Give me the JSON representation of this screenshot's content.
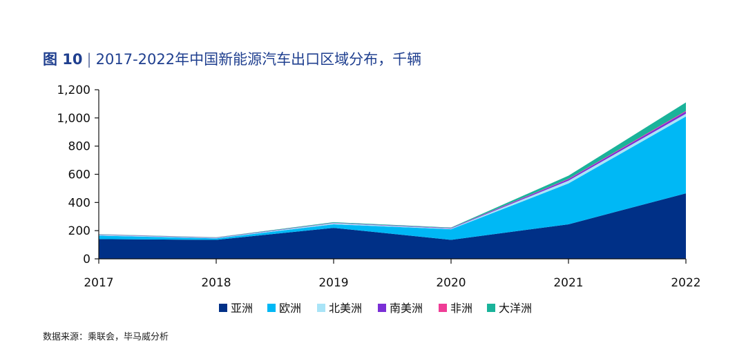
{
  "header": {
    "figure_label": "图 10",
    "separator": "|",
    "title": "2017-2022年中国新能源汽车出口区域分布，千辆"
  },
  "footer": {
    "source": "数据来源：乘联会，毕马威分析"
  },
  "chart_data": {
    "type": "area",
    "stacked": true,
    "categories": [
      "2017",
      "2018",
      "2019",
      "2020",
      "2021",
      "2022"
    ],
    "series": [
      {
        "name": "亚洲",
        "color": "#003087",
        "values": [
          140,
          135,
          220,
          135,
          245,
          465
        ]
      },
      {
        "name": "欧洲",
        "color": "#00b8f5",
        "values": [
          25,
          10,
          25,
          75,
          290,
          545
        ]
      },
      {
        "name": "北美洲",
        "color": "#a9e4f7",
        "values": [
          5,
          3,
          8,
          5,
          20,
          20
        ]
      },
      {
        "name": "南美洲",
        "color": "#7a2fd6",
        "values": [
          2,
          2,
          2,
          3,
          10,
          15
        ]
      },
      {
        "name": "非洲",
        "color": "#ef3d96",
        "values": [
          1,
          1,
          1,
          1,
          3,
          5
        ]
      },
      {
        "name": "大洋洲",
        "color": "#1ab39a",
        "values": [
          2,
          2,
          4,
          3,
          22,
          60
        ]
      }
    ],
    "ylim": [
      0,
      1200
    ],
    "yticks": [
      "0",
      "200",
      "400",
      "600",
      "800",
      "1,000",
      "1,200"
    ],
    "ytick_values": [
      0,
      200,
      400,
      600,
      800,
      1000,
      1200
    ],
    "legend_position": "bottom",
    "grid": false
  }
}
